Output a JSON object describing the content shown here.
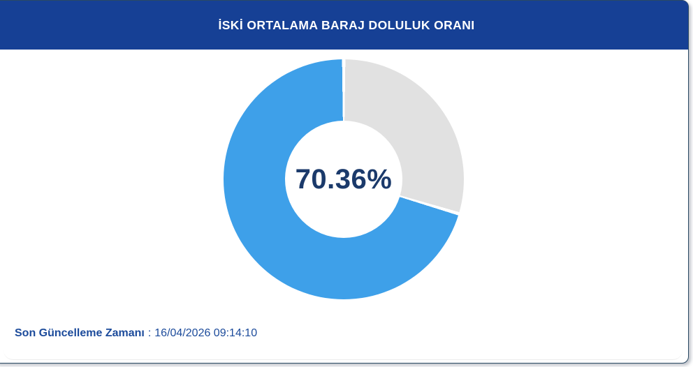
{
  "header": {
    "bg_color": "#164095",
    "text_color": "#FFFFFF"
  },
  "chart_data": {
    "type": "pie",
    "donut": true,
    "title": "İSKİ ORTALAMA BARAJ DOLULUK ORANI",
    "center_label": "70.36%",
    "values": [
      70.36,
      29.64
    ],
    "colors": [
      "#3EA0E9",
      "#E1E1E1"
    ],
    "gap_color": "#FFFFFF",
    "gap_degrees": 1.6,
    "start_angle_deg": 0,
    "direction": "clockwise",
    "legend": "none",
    "center_text_color": "#1B3A6B"
  },
  "footer": {
    "label": "Son Güncelleme Zamanı",
    "separator": ":",
    "value": "16/04/2026 09:14:10",
    "text_color": "#1C4B9B"
  },
  "card": {
    "border_color": "#2B4A63"
  }
}
